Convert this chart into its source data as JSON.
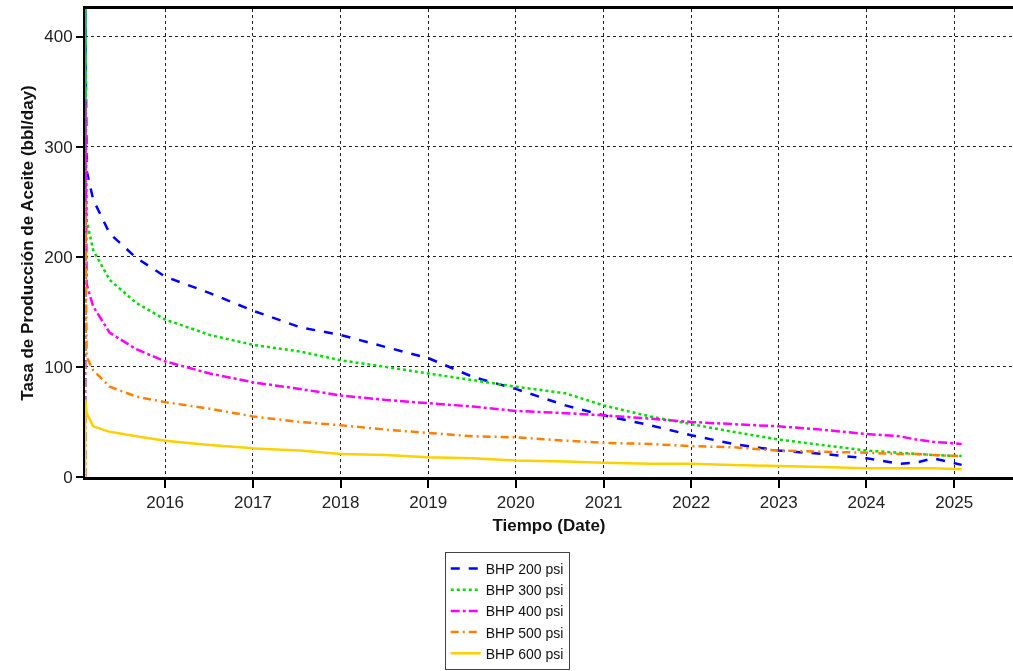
{
  "chart_data": {
    "type": "line",
    "xlabel": "Tiempo (Date)",
    "ylabel": "Tasa de Producción de Aceite (bbl/day)",
    "x": [
      "2015-02-01",
      "2015-02-02",
      "2015-02-08",
      "2015-03-07",
      "2015-05-15",
      "2015-09-03",
      "2016-01-01",
      "2016-07-05",
      "2017-01-01",
      "2017-07-16",
      "2018-01-01",
      "2018-07-08",
      "2019-01-01",
      "2019-07-05",
      "2020-01-01",
      "2020-07-26",
      "2021-01-01",
      "2021-07-13",
      "2022-01-01",
      "2022-06-25",
      "2023-01-01",
      "2023-07-01",
      "2024-01-01",
      "2024-05-18",
      "2024-07-27",
      "2024-10-05",
      "2025-02-01"
    ],
    "series": [
      {
        "name": "BHP 200 psi",
        "color": "#0000ff",
        "line_style": "dashed",
        "values": [
          0,
          425,
          278,
          252,
          221,
          199,
          182,
          167,
          151,
          136,
          129,
          118,
          108,
          91,
          80,
          65,
          56,
          47,
          38,
          30,
          24,
          21,
          17,
          12,
          13,
          17,
          11
        ]
      },
      {
        "name": "BHP 300 psi",
        "color": "#00dd00",
        "line_style": "dotted",
        "values": [
          0,
          425,
          233,
          206,
          179,
          158,
          143,
          129,
          120,
          114,
          106,
          100,
          94,
          88,
          82,
          76,
          65,
          55,
          48,
          41,
          34,
          29,
          24,
          22,
          21,
          20,
          19
        ]
      },
      {
        "name": "BHP 400 psi",
        "color": "#ff00ff",
        "line_style": "dashdot",
        "values": [
          0,
          343,
          175,
          155,
          131,
          116,
          105,
          94,
          86,
          80,
          74,
          70,
          67,
          64,
          60,
          58,
          56,
          53,
          50,
          48,
          46,
          43,
          39,
          37,
          34,
          32,
          30
        ]
      },
      {
        "name": "BHP 500 psi",
        "color": "#ff8000",
        "line_style": "longdashdot",
        "values": [
          0,
          250,
          109,
          97,
          82,
          73,
          68,
          62,
          55,
          50,
          47,
          43,
          40,
          37,
          36,
          33,
          31,
          30,
          28,
          27,
          24,
          23,
          22,
          21,
          21,
          20,
          19
        ]
      },
      {
        "name": "BHP 600 psi",
        "color": "#ffd000",
        "line_style": "solid",
        "values": [
          0,
          70,
          58,
          46,
          41,
          37,
          33,
          29,
          26,
          24,
          21,
          20,
          18,
          17,
          15,
          14,
          13,
          12,
          12,
          11,
          10,
          9,
          8,
          8,
          8,
          8,
          7
        ]
      }
    ],
    "xlim": [
      "2015-02-01",
      "2025-09-03"
    ],
    "xticks": [
      "2016",
      "2017",
      "2018",
      "2019",
      "2020",
      "2021",
      "2022",
      "2023",
      "2024",
      "2025"
    ],
    "ylim": [
      0,
      425
    ],
    "yticks": [
      0,
      100,
      200,
      300,
      400
    ],
    "grid": true,
    "legend": "bottom"
  }
}
